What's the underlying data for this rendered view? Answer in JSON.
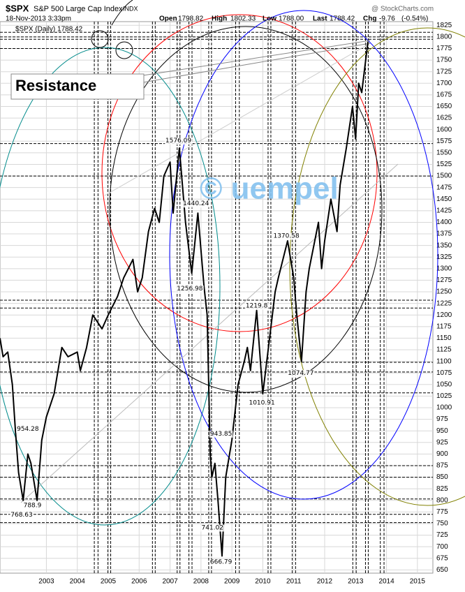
{
  "header": {
    "symbol": "$SPX",
    "name": "S&P 500 Large Cap Index",
    "exchange": "INDX",
    "source": "@ StockCharts.com",
    "date": "18-Nov-2013 3:33pm",
    "open_label": "Open",
    "open": "1798.82",
    "high_label": "High",
    "high": "1802.33",
    "low_label": "Low",
    "low": "1788.00",
    "last_label": "Last",
    "last": "1788.42",
    "chg_label": "Chg",
    "chg": "-9.76",
    "chg_pct": "(-0.54%)",
    "legend": "$SPX (Daily) 1788.42"
  },
  "chart_data": {
    "type": "line",
    "series": [
      {
        "name": "$SPX",
        "color": "#000000",
        "x": [
          2002.0,
          2002.1,
          2002.25,
          2002.4,
          2002.5,
          2002.6,
          2002.75,
          2002.9,
          2003.0,
          2003.1,
          2003.2,
          2003.35,
          2003.5,
          2003.75,
          2004.0,
          2004.2,
          2004.5,
          2004.6,
          2004.8,
          2005.0,
          2005.3,
          2005.5,
          2005.8,
          2006.0,
          2006.3,
          2006.45,
          2006.6,
          2006.8,
          2007.0,
          2007.15,
          2007.3,
          2007.5,
          2007.6,
          2007.8,
          2007.9,
          2008.0,
          2008.2,
          2008.4,
          2008.6,
          2008.7,
          2008.8,
          2008.85,
          2008.95,
          2009.05,
          2009.18,
          2009.3,
          2009.5,
          2009.7,
          2009.9,
          2010.0,
          2010.1,
          2010.3,
          2010.5,
          2010.7,
          2010.9,
          2011.0,
          2011.3,
          2011.5,
          2011.6,
          2011.75,
          2011.9,
          2012.0,
          2012.3,
          2012.4,
          2012.5,
          2012.7,
          2012.9,
          2013.0,
          2013.2,
          2013.4,
          2013.5,
          2013.6,
          2013.7,
          2013.9
        ],
        "values": [
          1150,
          1110,
          1120,
          1050,
          950,
          860,
          800,
          900,
          880,
          840,
          800,
          930,
          980,
          1030,
          1130,
          1110,
          1120,
          1080,
          1130,
          1200,
          1170,
          1200,
          1240,
          1280,
          1320,
          1250,
          1280,
          1380,
          1430,
          1400,
          1500,
          1530,
          1420,
          1560,
          1480,
          1400,
          1290,
          1420,
          1260,
          1200,
          900,
          850,
          880,
          800,
          680,
          850,
          930,
          1050,
          1100,
          1130,
          1080,
          1210,
          1030,
          1140,
          1250,
          1280,
          1360,
          1280,
          1200,
          1100,
          1250,
          1300,
          1400,
          1300,
          1360,
          1450,
          1380,
          1480,
          1560,
          1650,
          1580,
          1700,
          1680,
          1790
        ]
      }
    ],
    "xlim": [
      2002.0,
      2016.0
    ],
    "xticks": [
      {
        "value": 2003.5,
        "label": "2003"
      },
      {
        "value": 2004.5,
        "label": "2004"
      },
      {
        "value": 2005.5,
        "label": "2005"
      },
      {
        "value": 2006.5,
        "label": "2006"
      },
      {
        "value": 2007.5,
        "label": "2007"
      },
      {
        "value": 2008.5,
        "label": "2008"
      },
      {
        "value": 2009.5,
        "label": "2009"
      },
      {
        "value": 2010.5,
        "label": "2010"
      },
      {
        "value": 2011.5,
        "label": "2011"
      },
      {
        "value": 2012.5,
        "label": "2012"
      },
      {
        "value": 2013.5,
        "label": "2013"
      },
      {
        "value": 2014.5,
        "label": "2014"
      },
      {
        "value": 2015.5,
        "label": "2015"
      }
    ],
    "ylim": [
      643,
      1833
    ],
    "yticks": [
      650,
      675,
      700,
      725,
      750,
      775,
      800,
      825,
      850,
      875,
      900,
      925,
      950,
      975,
      1000,
      1025,
      1050,
      1075,
      1100,
      1125,
      1150,
      1175,
      1200,
      1225,
      1250,
      1275,
      1300,
      1325,
      1350,
      1375,
      1400,
      1425,
      1450,
      1475,
      1500,
      1525,
      1550,
      1575,
      1600,
      1625,
      1650,
      1675,
      1700,
      1725,
      1750,
      1775,
      1800,
      1825
    ],
    "grid": true,
    "hlines": [
      1810,
      1800,
      1795,
      1775,
      1570,
      1500,
      1232,
      1215,
      1098,
      1077,
      1032,
      875,
      850,
      803,
      770,
      752
    ],
    "vlines": [
      {
        "x": 2005.05,
        "color": "#000000"
      },
      {
        "x": 2005.17,
        "color": "#000000"
      },
      {
        "x": 2005.49,
        "color": "#000000"
      },
      {
        "x": 2005.58,
        "color": "#000000"
      },
      {
        "x": 2006.93,
        "color": "#0000ff"
      },
      {
        "x": 2007.02,
        "color": "#000000"
      },
      {
        "x": 2007.73,
        "color": "#000000"
      },
      {
        "x": 2007.82,
        "color": "#000000"
      },
      {
        "x": 2008.11,
        "color": "#000000"
      },
      {
        "x": 2008.21,
        "color": "#000000"
      },
      {
        "x": 2008.75,
        "color": "#000000"
      },
      {
        "x": 2008.84,
        "color": "#0000ff"
      },
      {
        "x": 2009.62,
        "color": "#000000"
      },
      {
        "x": 2009.74,
        "color": "#000000"
      },
      {
        "x": 2010.67,
        "color": "#000000"
      },
      {
        "x": 2010.76,
        "color": "#000000"
      },
      {
        "x": 2011.45,
        "color": "#000000"
      },
      {
        "x": 2011.56,
        "color": "#000000"
      },
      {
        "x": 2013.41,
        "color": "#000000"
      },
      {
        "x": 2013.52,
        "color": "#000000"
      },
      {
        "x": 2013.82,
        "color": "#000000"
      },
      {
        "x": 2013.91,
        "color": "#000000"
      },
      {
        "x": 2014.3,
        "color": "#000000"
      },
      {
        "x": 2014.42,
        "color": "#000000"
      }
    ],
    "annotations": [
      {
        "x": 2002.9,
        "value": 954.28
      },
      {
        "x": 2003.05,
        "value": 788.9
      },
      {
        "x": 2002.7,
        "value": 768.63
      },
      {
        "x": 2007.77,
        "value": 1576.09
      },
      {
        "x": 2008.34,
        "value": 1440.24
      },
      {
        "x": 2008.14,
        "value": 1256.98
      },
      {
        "x": 2009.15,
        "value": 943.85
      },
      {
        "x": 2008.87,
        "value": 741.02
      },
      {
        "x": 2009.15,
        "value": 666.79
      },
      {
        "x": 2010.3,
        "value": 1219.8
      },
      {
        "x": 2010.47,
        "value": 1010.91
      },
      {
        "x": 2011.73,
        "value": 1074.77
      },
      {
        "x": 2011.26,
        "value": 1370.58
      }
    ],
    "callout": "Resistance",
    "watermark": "© uempel"
  }
}
